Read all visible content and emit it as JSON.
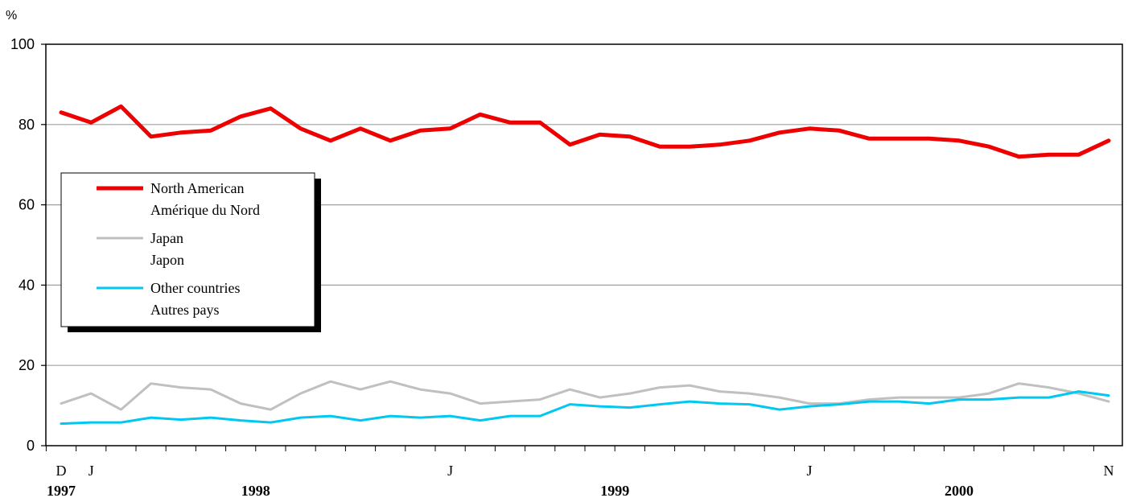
{
  "chart_data": {
    "type": "line",
    "y_unit": "%",
    "ylim": [
      0,
      100
    ],
    "yticks": [
      "0",
      "20",
      "40",
      "60",
      "80",
      "100"
    ],
    "grid": true,
    "legend_position": "left",
    "x_month_labels": [
      {
        "index": 0,
        "label": "D"
      },
      {
        "index": 1,
        "label": "J"
      },
      {
        "index": 13,
        "label": "J"
      },
      {
        "index": 25,
        "label": "J"
      },
      {
        "index": 35,
        "label": "N"
      }
    ],
    "x_year_labels": [
      {
        "index": 0,
        "label": "1997"
      },
      {
        "index": 6.5,
        "label": "1998"
      },
      {
        "index": 18.5,
        "label": "1999"
      },
      {
        "index": 30,
        "label": "2000"
      }
    ],
    "series": [
      {
        "name": "North American",
        "name_fr": "Amérique du Nord",
        "color": "#ee0000",
        "values": [
          83,
          80.5,
          84.5,
          77,
          78,
          78.5,
          82,
          84,
          79,
          76,
          79,
          76,
          78.5,
          79,
          82.5,
          80.5,
          80.5,
          75,
          77.5,
          77,
          74.5,
          74.5,
          75,
          76,
          78,
          79,
          78.5,
          76.5,
          76.5,
          76.5,
          76,
          74.5,
          72,
          72.5,
          72.5,
          76
        ]
      },
      {
        "name": "Japan",
        "name_fr": "Japon",
        "color": "#c0c0c0",
        "values": [
          10.5,
          13,
          9,
          15.5,
          14.5,
          14,
          10.5,
          9,
          13,
          16,
          14,
          16,
          14,
          13,
          10.5,
          11,
          11.5,
          14,
          12,
          13,
          14.5,
          15,
          13.5,
          13,
          12,
          10.5,
          10.5,
          11.5,
          12,
          12,
          12,
          13,
          15.5,
          14.5,
          13,
          11
        ]
      },
      {
        "name": "Other countries",
        "name_fr": "Autres pays",
        "color": "#00c8f0",
        "values": [
          5.5,
          5.8,
          5.8,
          7,
          6.5,
          7,
          6.3,
          5.8,
          7,
          7.4,
          6.3,
          7.4,
          7,
          7.4,
          6.3,
          7.4,
          7.4,
          10.3,
          9.8,
          9.5,
          10.3,
          11,
          10.5,
          10.3,
          9,
          9.8,
          10.3,
          11,
          11,
          10.5,
          11.5,
          11.5,
          12,
          12,
          13.5,
          12.5
        ]
      }
    ]
  }
}
